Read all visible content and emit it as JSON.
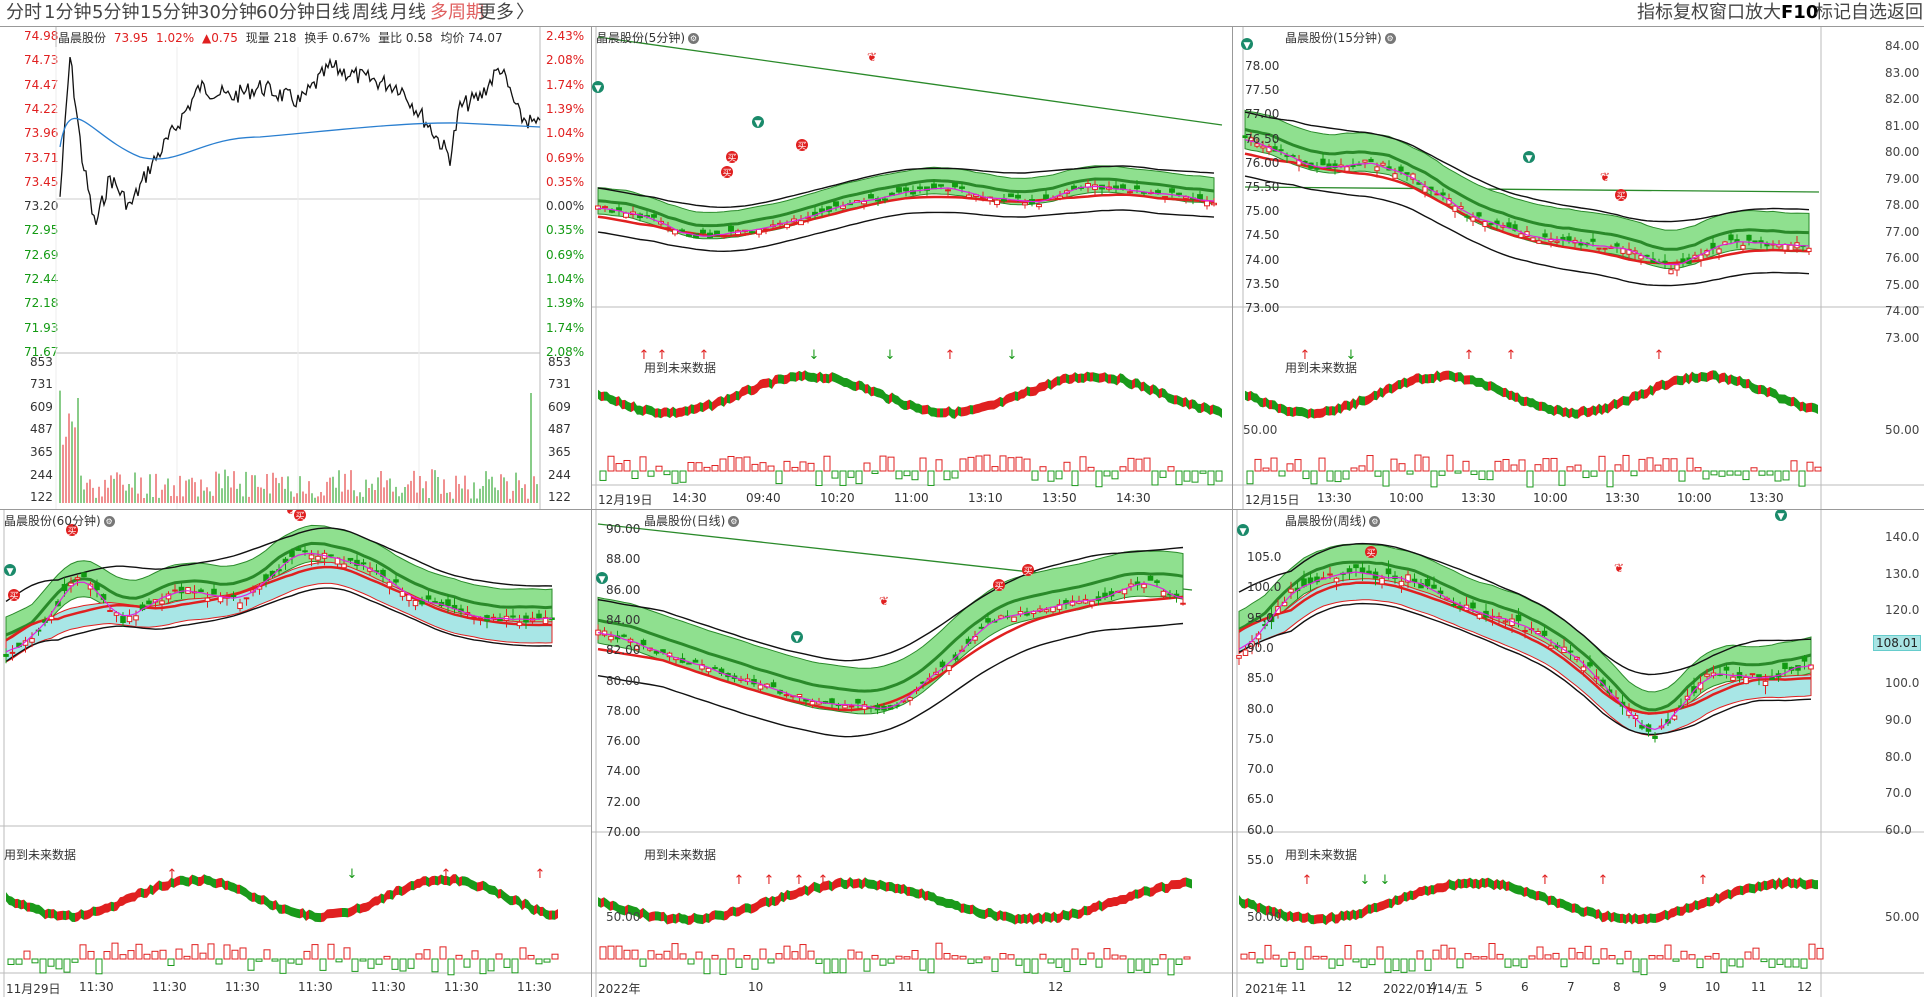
{
  "toolbar": {
    "periods": [
      "分时",
      "1分钟",
      "5分钟",
      "15分钟",
      "30分钟",
      "60分钟",
      "日线",
      "周线",
      "月线",
      "多周期",
      "更多",
      "〉"
    ],
    "active_index": 9,
    "right_items": [
      "指标",
      "复权",
      "窗口",
      "放大",
      "F10",
      "标记",
      "自选",
      "返回"
    ]
  },
  "stock_name": "晶晨股份",
  "future_data_label": "用到未来数据",
  "intraday": {
    "header_price_label": "73.95",
    "header_change_pct": "1.02%",
    "header_change": "▲0.75",
    "header_volume_label": "现量 218",
    "header_turnover_label": "换手 0.67%",
    "header_ratio_label": "量比 0.58",
    "header_avg_label": "均价 74.07",
    "price_ticks": [
      "74.98",
      "74.73",
      "74.47",
      "74.22",
      "73.96",
      "73.71",
      "73.45",
      "73.20",
      "72.95",
      "72.69",
      "72.44",
      "72.18",
      "71.93",
      "71.67"
    ],
    "pct_ticks": [
      "2.43%",
      "2.08%",
      "1.74%",
      "1.39%",
      "1.04%",
      "0.69%",
      "0.35%",
      "0.00%",
      "0.35%",
      "0.69%",
      "1.04%",
      "1.39%",
      "1.74%",
      "2.08%"
    ],
    "vol_ticks": [
      "853",
      "731",
      "609",
      "487",
      "365",
      "244",
      "122"
    ]
  },
  "panels": {
    "m5": {
      "title": "晶晨股份(5分钟)",
      "x_ticks": [
        "12月19日",
        "14:30",
        "09:40",
        "10:20",
        "11:00",
        "13:10",
        "13:50",
        "14:30"
      ]
    },
    "m15": {
      "title": "晶晨股份(15分钟)",
      "y_ticks": [
        "78.00",
        "77.50",
        "77.00",
        "76.50",
        "76.00",
        "75.50",
        "75.00",
        "74.50",
        "74.00",
        "73.50",
        "73.00"
      ],
      "right_ticks": [
        "84.00",
        "83.00",
        "82.00",
        "81.00",
        "80.00",
        "79.00",
        "78.00",
        "77.00",
        "76.00",
        "75.00",
        "74.00",
        "73.00"
      ],
      "ind_tick": "50.00",
      "x_ticks": [
        "12月15日",
        "13:30",
        "10:00",
        "13:30",
        "10:00",
        "13:30",
        "10:00",
        "13:30"
      ]
    },
    "m60": {
      "title": "晶晨股份(60分钟)",
      "x_ticks": [
        "11月29日",
        "11:30",
        "11:30",
        "11:30",
        "11:30",
        "11:30",
        "11:30",
        "11:30"
      ]
    },
    "day": {
      "title": "晶晨股份(日线)",
      "y_ticks": [
        "90.00",
        "88.00",
        "86.00",
        "84.00",
        "82.00",
        "80.00",
        "78.00",
        "76.00",
        "74.00",
        "72.00",
        "70.00"
      ],
      "ind_tick": "50.00",
      "x_ticks": [
        "2022年",
        "10",
        "11",
        "12"
      ]
    },
    "week": {
      "title": "晶晨股份(周线)",
      "y_ticks": [
        "105.0",
        "100.0",
        "95.0",
        "90.0",
        "85.0",
        "80.0",
        "75.0",
        "70.0",
        "65.0",
        "60.0",
        "55.0"
      ],
      "right_ticks": [
        "140.0",
        "130.0",
        "120.0",
        "110.0",
        "100.0",
        "90.0",
        "80.0",
        "70.0",
        "60.0"
      ],
      "price_tag": "108.01",
      "ind_tick": "50.00",
      "x_ticks": [
        "2021年",
        "11",
        "12",
        "2022/01/14/五",
        "4",
        "5",
        "6",
        "7",
        "8",
        "9",
        "10",
        "11",
        "12"
      ]
    }
  },
  "colors": {
    "up": "#e02020",
    "down": "#129a12",
    "band_green": "#8fe08f",
    "band_cyan": "#a8e6e6",
    "ma_magenta": "#e020e0",
    "ma_red": "#e02020",
    "ma_black": "#111111",
    "ma_darkgreen": "#2a8a2a",
    "avg_blue": "#2a7fd0"
  }
}
